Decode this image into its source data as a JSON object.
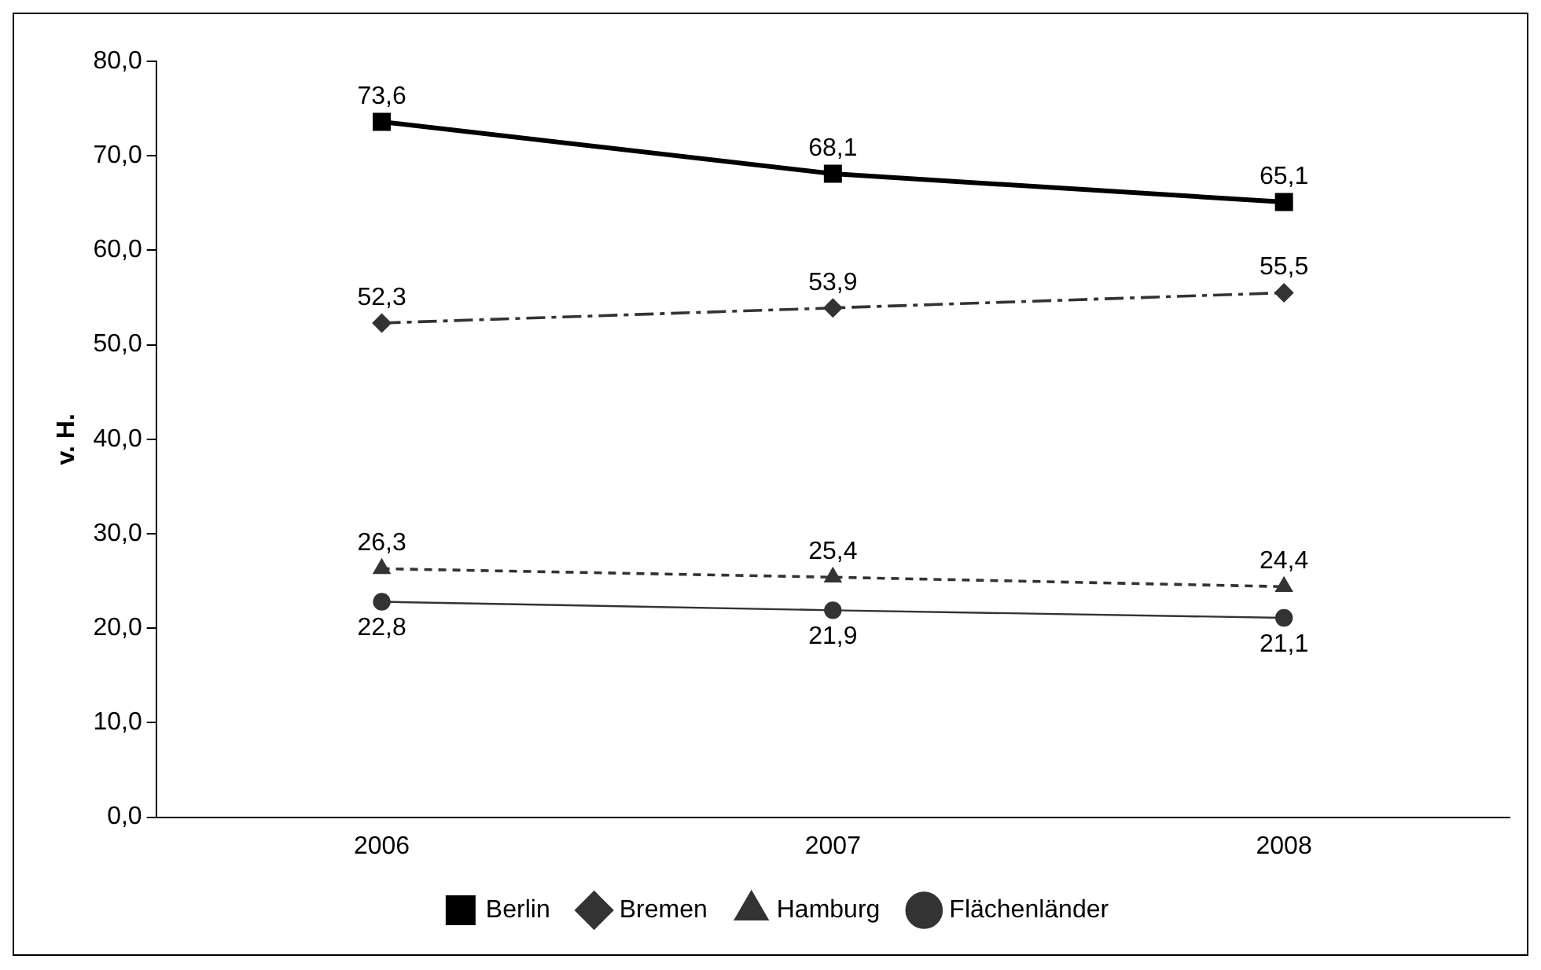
{
  "chart_data": {
    "type": "line",
    "ylabel": "v. H.",
    "categories": [
      "2006",
      "2007",
      "2008"
    ],
    "ylim": [
      0,
      80
    ],
    "yticks": [
      {
        "value": 0,
        "label": "0,0"
      },
      {
        "value": 10,
        "label": "10,0"
      },
      {
        "value": 20,
        "label": "20,0"
      },
      {
        "value": 30,
        "label": "30,0"
      },
      {
        "value": 40,
        "label": "40,0"
      },
      {
        "value": 50,
        "label": "50,0"
      },
      {
        "value": 60,
        "label": "60,0"
      },
      {
        "value": 70,
        "label": "70,0"
      },
      {
        "value": 80,
        "label": "80,0"
      }
    ],
    "grid": false,
    "legend": "bottom",
    "series": [
      {
        "name": "Berlin",
        "color": "#000000",
        "values": [
          73.6,
          68.1,
          65.1
        ],
        "value_labels": [
          "73,6",
          "68,1",
          "65,1"
        ],
        "marker": "square",
        "line_style": "solid"
      },
      {
        "name": "Bremen",
        "color": "#333333",
        "values": [
          52.3,
          53.9,
          55.5
        ],
        "value_labels": [
          "52,3",
          "53,9",
          "55,5"
        ],
        "marker": "diamond",
        "line_style": "dashed"
      },
      {
        "name": "Hamburg",
        "color": "#333333",
        "values": [
          26.3,
          25.4,
          24.4
        ],
        "value_labels": [
          "26,3",
          "25,4",
          "24,4"
        ],
        "marker": "triangle",
        "line_style": "dotted"
      },
      {
        "name": "Flächenländer",
        "color": "#333333",
        "values": [
          22.8,
          21.9,
          21.1
        ],
        "value_labels": [
          "22,8",
          "21,9",
          "21,1"
        ],
        "marker": "circle",
        "line_style": "solid"
      }
    ]
  }
}
